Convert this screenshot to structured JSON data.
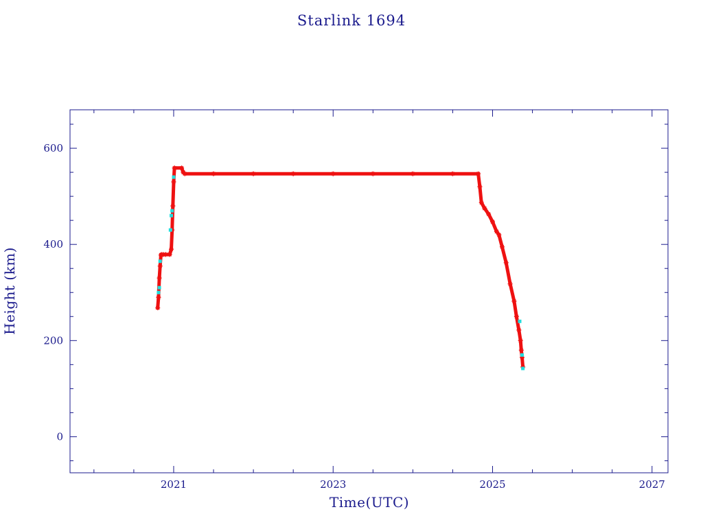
{
  "chart_data": {
    "type": "scatter",
    "title": "Starlink 1694",
    "xlabel": "Time(UTC)",
    "ylabel": "Height (km)",
    "xlim": [
      2019.7,
      2027.2
    ],
    "ylim": [
      -75,
      680
    ],
    "x_ticks": [
      2021,
      2023,
      2025,
      2027
    ],
    "y_ticks": [
      0,
      200,
      400,
      600
    ],
    "x_minor_step": 0.5,
    "y_minor_step": 50,
    "grid": false,
    "colors": {
      "axis": "#1a1a8c",
      "primary": "#ee1111",
      "secondary": "#22dddd",
      "line": "#111111"
    },
    "series": [
      {
        "marker": "star",
        "color": "#ee1111",
        "x": [
          2020.8,
          2020.81,
          2020.82,
          2020.83,
          2020.84,
          2020.85,
          2020.87,
          2020.9,
          2020.95,
          2020.97,
          2020.98,
          2020.99,
          2021.0,
          2021.01,
          2021.1,
          2021.12,
          2021.14,
          2021.5,
          2022.0,
          2022.5,
          2023.0,
          2023.5,
          2024.0,
          2024.5,
          2024.82,
          2024.84,
          2024.86,
          2024.9,
          2024.95,
          2025.0,
          2025.05,
          2025.08,
          2025.12,
          2025.17,
          2025.22,
          2025.27,
          2025.3,
          2025.33,
          2025.35,
          2025.36,
          2025.37,
          2025.38
        ],
        "y": [
          268,
          290,
          330,
          355,
          378,
          379,
          379,
          379,
          379,
          390,
          430,
          480,
          530,
          559,
          559,
          550,
          547,
          547,
          547,
          547,
          547,
          547,
          547,
          547,
          547,
          520,
          487,
          475,
          463,
          447,
          427,
          420,
          395,
          362,
          318,
          282,
          250,
          222,
          200,
          180,
          165,
          145
        ]
      },
      {
        "marker": "dot",
        "color": "#22dddd",
        "x": [
          2020.81,
          2020.82,
          2020.83,
          2020.96,
          2020.97,
          2020.98,
          2021.0,
          2025.34,
          2025.37,
          2025.38
        ],
        "y": [
          300,
          310,
          365,
          430,
          460,
          470,
          540,
          240,
          170,
          142
        ]
      }
    ]
  }
}
